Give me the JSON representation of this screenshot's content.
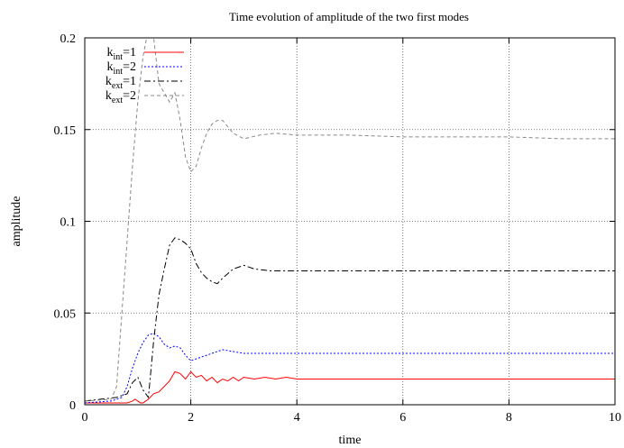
{
  "chart_data": {
    "type": "line",
    "title": "Time evolution of amplitude of the two first modes",
    "xlabel": "time",
    "ylabel": "amplitude",
    "xlim": [
      0,
      10
    ],
    "ylim": [
      0,
      0.2
    ],
    "xticks": [
      0,
      2,
      4,
      6,
      8,
      10
    ],
    "yticks": [
      0,
      0.05,
      0.1,
      0.15,
      0.2
    ],
    "xtick_labels": [
      "0",
      "2",
      "4",
      "6",
      "8",
      "10"
    ],
    "ytick_labels": [
      "0",
      "0.05",
      "0.1",
      "0.15",
      "0.2"
    ],
    "grid": true,
    "legend_position": "top-left",
    "series": [
      {
        "name": "k_int=1",
        "label_base": "k",
        "label_sub": "int",
        "label_rest": "=1",
        "color": "#ff0000",
        "dash": "solid",
        "x": [
          0,
          0.5,
          0.8,
          0.9,
          0.95,
          1.0,
          1.05,
          1.1,
          1.2,
          1.3,
          1.4,
          1.5,
          1.6,
          1.7,
          1.8,
          1.9,
          2.0,
          2.1,
          2.2,
          2.3,
          2.4,
          2.5,
          2.6,
          2.7,
          2.8,
          2.9,
          3.0,
          3.2,
          3.4,
          3.6,
          3.8,
          4.0,
          4.5,
          5.0,
          6.0,
          7.0,
          8.0,
          9.0,
          10.0
        ],
        "y": [
          0.001,
          0.001,
          0.001,
          0.002,
          0.003,
          0.002,
          0.001,
          0.001,
          0.003,
          0.006,
          0.007,
          0.01,
          0.013,
          0.018,
          0.017,
          0.014,
          0.018,
          0.015,
          0.016,
          0.013,
          0.015,
          0.012,
          0.014,
          0.013,
          0.015,
          0.013,
          0.015,
          0.014,
          0.015,
          0.014,
          0.015,
          0.014,
          0.014,
          0.014,
          0.014,
          0.014,
          0.014,
          0.014,
          0.014
        ]
      },
      {
        "name": "k_int=2",
        "label_base": "k",
        "label_sub": "int",
        "label_rest": "=2",
        "color": "#0000ff",
        "dash": "dotted",
        "x": [
          0,
          0.5,
          0.7,
          0.8,
          0.9,
          1.0,
          1.1,
          1.2,
          1.3,
          1.4,
          1.5,
          1.6,
          1.7,
          1.8,
          1.9,
          2.0,
          2.2,
          2.4,
          2.6,
          2.8,
          3.0,
          3.5,
          4.0,
          5.0,
          6.0,
          7.0,
          8.0,
          9.0,
          10.0
        ],
        "y": [
          0.001,
          0.002,
          0.004,
          0.01,
          0.02,
          0.028,
          0.034,
          0.038,
          0.039,
          0.037,
          0.033,
          0.031,
          0.032,
          0.031,
          0.027,
          0.024,
          0.026,
          0.028,
          0.03,
          0.029,
          0.028,
          0.028,
          0.028,
          0.028,
          0.028,
          0.028,
          0.028,
          0.028,
          0.028
        ]
      },
      {
        "name": "k_ext=1",
        "label_base": "k",
        "label_sub": "ext",
        "label_rest": "=1",
        "color": "#000000",
        "dash": "dashdot",
        "x": [
          0,
          0.3,
          0.6,
          0.8,
          0.9,
          1.0,
          1.1,
          1.2,
          1.3,
          1.4,
          1.5,
          1.6,
          1.7,
          1.8,
          1.9,
          2.0,
          2.1,
          2.2,
          2.3,
          2.4,
          2.5,
          2.6,
          2.8,
          3.0,
          3.2,
          3.5,
          4.0,
          5.0,
          6.0,
          7.0,
          8.0,
          9.0,
          10.0
        ],
        "y": [
          0.002,
          0.003,
          0.004,
          0.006,
          0.012,
          0.015,
          0.008,
          0.004,
          0.035,
          0.06,
          0.074,
          0.087,
          0.091,
          0.09,
          0.088,
          0.085,
          0.077,
          0.072,
          0.069,
          0.067,
          0.066,
          0.069,
          0.074,
          0.076,
          0.074,
          0.073,
          0.073,
          0.073,
          0.073,
          0.073,
          0.073,
          0.073,
          0.073
        ]
      },
      {
        "name": "k_ext=2",
        "label_base": "k",
        "label_sub": "ext",
        "label_rest": "=2",
        "color": "#888888",
        "dash": "dashed",
        "x": [
          0,
          0.5,
          0.6,
          0.7,
          0.8,
          0.9,
          1.0,
          1.1,
          1.2,
          1.25,
          1.3,
          1.4,
          1.5,
          1.6,
          1.7,
          1.8,
          1.9,
          2.0,
          2.1,
          2.2,
          2.3,
          2.4,
          2.5,
          2.6,
          2.8,
          3.0,
          3.3,
          3.6,
          4.0,
          4.5,
          5.0,
          6.0,
          7.0,
          8.0,
          9.0,
          10.0
        ],
        "y": [
          0.002,
          0.003,
          0.01,
          0.05,
          0.09,
          0.13,
          0.165,
          0.19,
          0.205,
          0.21,
          0.2,
          0.175,
          0.17,
          0.165,
          0.17,
          0.155,
          0.135,
          0.127,
          0.13,
          0.14,
          0.148,
          0.153,
          0.155,
          0.155,
          0.148,
          0.145,
          0.147,
          0.148,
          0.147,
          0.147,
          0.147,
          0.146,
          0.146,
          0.146,
          0.145,
          0.145
        ]
      }
    ]
  }
}
